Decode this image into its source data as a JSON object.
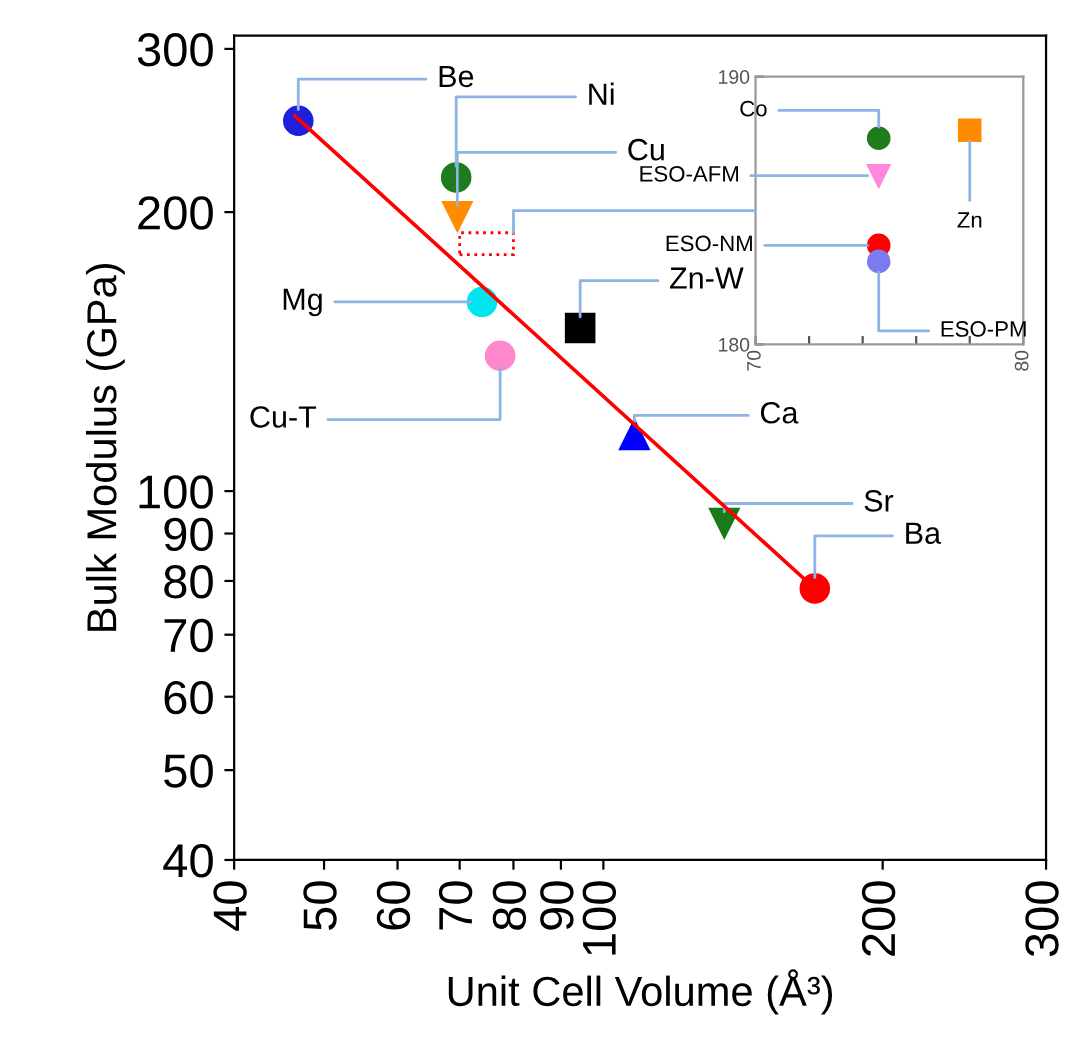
{
  "chart_data": [
    {
      "type": "scatter",
      "xlabel": "Unit Cell Volume (Å³)",
      "ylabel": "Bulk Modulus (GPa)",
      "log": "xy",
      "grid": false,
      "legend": false,
      "xlim": [
        40,
        300
      ],
      "ylim": [
        40,
        310
      ],
      "xticks": [
        40,
        50,
        60,
        70,
        80,
        90,
        100,
        200,
        300
      ],
      "yticks": [
        40,
        50,
        60,
        70,
        80,
        90,
        100,
        200,
        300
      ],
      "series": [
        {
          "type": "line",
          "color": "#ff0000",
          "marker": "none",
          "line_style": "solid",
          "x": [
            46.5,
            169
          ],
          "values": [
            254,
            78.5
          ]
        },
        {
          "name": "Be",
          "color": "#1f1fdd",
          "marker": "circle",
          "x": [
            46.9
          ],
          "values": [
            251
          ]
        },
        {
          "name": "Ni",
          "color": "#1e7b1e",
          "marker": "circle",
          "x": [
            69.4
          ],
          "values": [
            218
          ]
        },
        {
          "name": "Cu",
          "color": "#ff8c00",
          "marker": "triangle-down",
          "x": [
            69.6
          ],
          "values": [
            198
          ]
        },
        {
          "name": "Mg",
          "color": "#00e5ee",
          "marker": "circle",
          "x": [
            74
          ],
          "values": [
            160
          ]
        },
        {
          "name": "Cu-T",
          "color": "#ff88cc",
          "marker": "circle",
          "x": [
            77.4
          ],
          "values": [
            140
          ]
        },
        {
          "name": "Zn-W",
          "color": "#000000",
          "marker": "square",
          "x": [
            94.4
          ],
          "values": [
            150
          ]
        },
        {
          "name": "Ca",
          "color": "#0000ff",
          "marker": "triangle",
          "x": [
            108
          ],
          "values": [
            115
          ]
        },
        {
          "name": "Sr",
          "color": "#1a7a1a",
          "marker": "triangle-down",
          "x": [
            135
          ],
          "values": [
            92.4
          ]
        },
        {
          "name": "Ba",
          "color": "#ff0000",
          "marker": "circle",
          "x": [
            169
          ],
          "values": [
            78.5
          ]
        }
      ]
    },
    {
      "type": "scatter",
      "grid": false,
      "legend": false,
      "xlim": [
        70,
        80
      ],
      "ylim": [
        180,
        190
      ],
      "xticks": [
        70,
        {
          "value": 72,
          "label": null
        },
        {
          "value": 74,
          "label": null
        },
        {
          "value": 76,
          "label": null
        },
        {
          "value": 78,
          "label": null
        },
        80
      ],
      "yticks": [
        180,
        190
      ],
      "series": [
        {
          "name": "Co",
          "color": "#1e7b1e",
          "marker": "circle",
          "x": [
            74.6
          ],
          "values": [
            187.7
          ]
        },
        {
          "name": "ESO-AFM",
          "color": "#ff88dd",
          "marker": "triangle-down",
          "x": [
            74.6
          ],
          "values": [
            186.3
          ]
        },
        {
          "name": "ESO-NM",
          "color": "#ff0000",
          "marker": "circle",
          "x": [
            74.6
          ],
          "values": [
            183.7
          ]
        },
        {
          "name": "ESO-PM",
          "color": "#7b7bf0",
          "marker": "circle",
          "x": [
            74.6
          ],
          "values": [
            183.1
          ]
        },
        {
          "name": "Zn",
          "color": "#ff8c00",
          "marker": "square",
          "x": [
            78.0
          ],
          "values": [
            188.0
          ]
        }
      ]
    }
  ]
}
